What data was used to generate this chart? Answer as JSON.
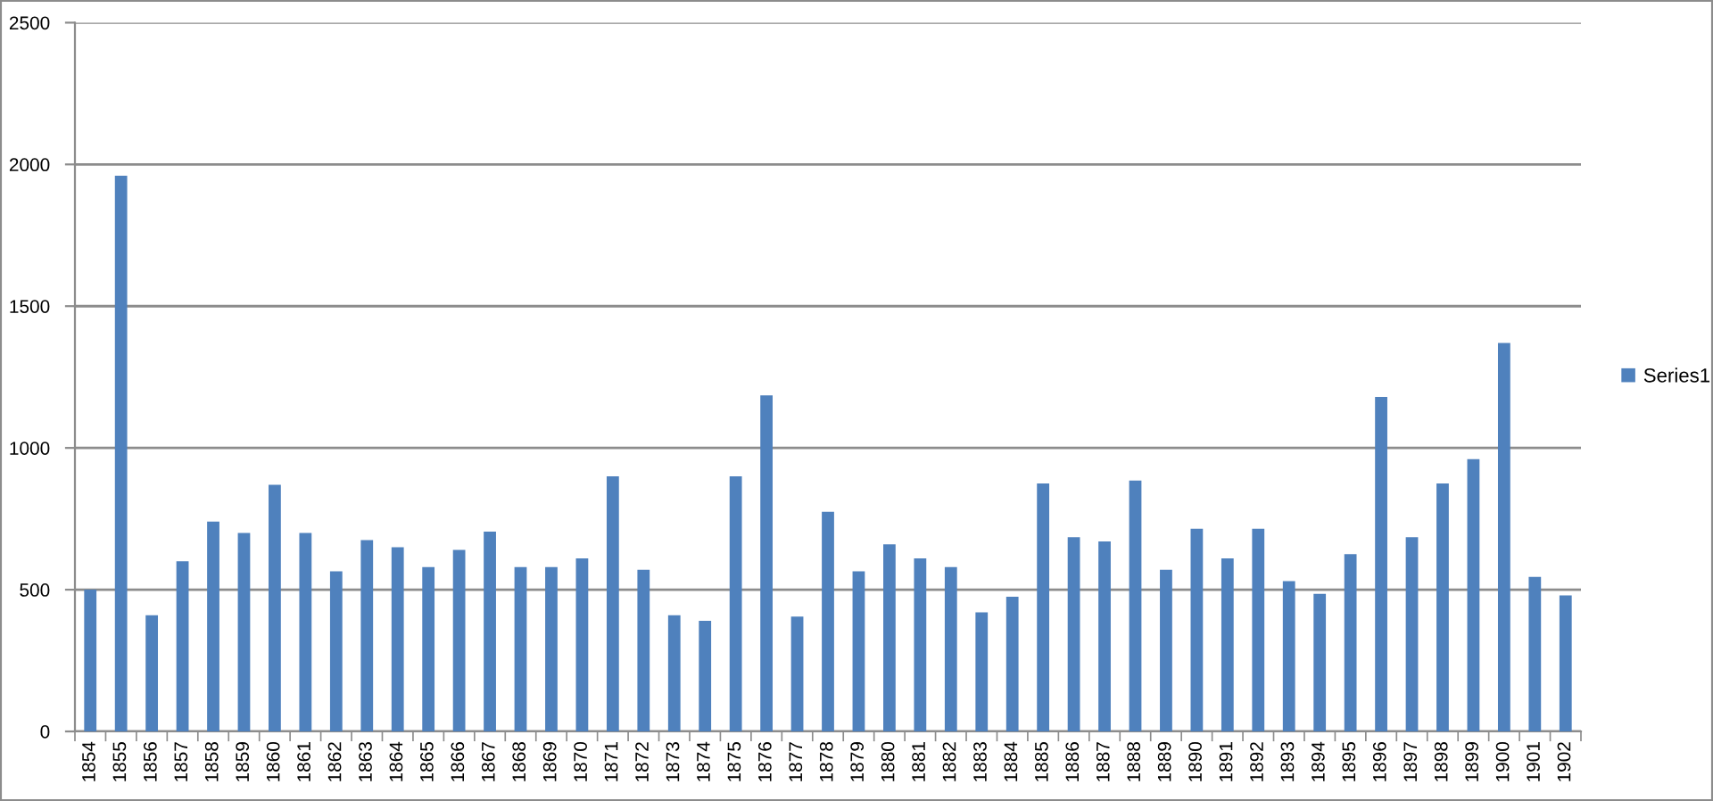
{
  "chart_data": {
    "type": "bar",
    "categories": [
      "1854",
      "1855",
      "1856",
      "1857",
      "1858",
      "1859",
      "1860",
      "1861",
      "1862",
      "1863",
      "1864",
      "1865",
      "1866",
      "1867",
      "1868",
      "1869",
      "1870",
      "1871",
      "1872",
      "1873",
      "1874",
      "1875",
      "1876",
      "1877",
      "1878",
      "1879",
      "1880",
      "1881",
      "1882",
      "1883",
      "1884",
      "1885",
      "1886",
      "1887",
      "1888",
      "1889",
      "1890",
      "1891",
      "1892",
      "1893",
      "1894",
      "1895",
      "1896",
      "1897",
      "1898",
      "1899",
      "1900",
      "1901",
      "1902"
    ],
    "series": [
      {
        "name": "Series1",
        "color": "#4f81bd",
        "values": [
          500,
          1960,
          410,
          600,
          740,
          700,
          870,
          700,
          565,
          675,
          650,
          580,
          640,
          705,
          580,
          580,
          610,
          900,
          570,
          410,
          390,
          900,
          1185,
          405,
          775,
          565,
          660,
          610,
          580,
          420,
          475,
          875,
          685,
          670,
          885,
          570,
          715,
          610,
          715,
          530,
          485,
          625,
          1180,
          685,
          875,
          960,
          1370,
          545,
          480
        ]
      }
    ],
    "ylim": [
      0,
      2500
    ],
    "yticks": [
      0,
      500,
      1000,
      1500,
      2000,
      2500
    ],
    "grid": "y",
    "legend": "right"
  }
}
